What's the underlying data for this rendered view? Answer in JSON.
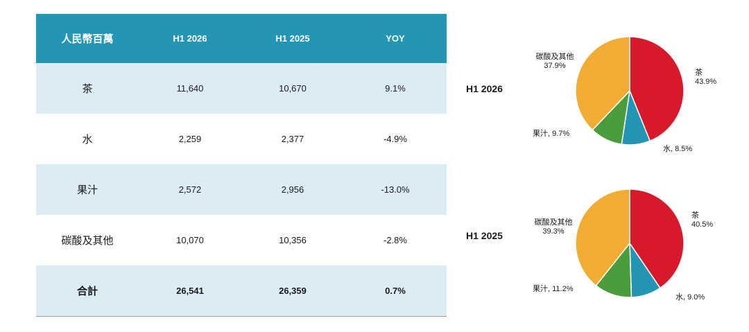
{
  "table": {
    "headers": [
      "人民幣百萬",
      "H1 2026",
      "H1 2025",
      "YOY"
    ],
    "rows": [
      {
        "label": "茶",
        "h1_2026": "11,640",
        "h1_2025": "10,670",
        "yoy": "9.1%"
      },
      {
        "label": "水",
        "h1_2026": "2,259",
        "h1_2025": "2,377",
        "yoy": "-4.9%"
      },
      {
        "label": "果汁",
        "h1_2026": "2,572",
        "h1_2025": "2,956",
        "yoy": "-13.0%"
      },
      {
        "label": "碳酸及其他",
        "h1_2026": "10,070",
        "h1_2025": "10,356",
        "yoy": "-2.8%"
      }
    ],
    "total": {
      "label": "合計",
      "h1_2026": "26,541",
      "h1_2025": "26,359",
      "yoy": "0.7%"
    }
  },
  "colors": {
    "header_bg": "#2496b5",
    "row_shade": "#dcecf4",
    "tea": "#d7192a",
    "water": "#2496b5",
    "juice": "#4a9c3d",
    "carbonated": "#f0ad32"
  },
  "chart_data": [
    {
      "type": "pie",
      "title": "H1 2026",
      "slices": [
        {
          "name": "茶",
          "value": 43.9,
          "label_line1": "茶",
          "label_line2": "43.9%"
        },
        {
          "name": "水",
          "value": 8.5,
          "label_line1": "水, 8.5%",
          "label_line2": ""
        },
        {
          "name": "果汁",
          "value": 9.7,
          "label_line1": "果汁, 9.7%",
          "label_line2": ""
        },
        {
          "name": "碳酸及其他",
          "value": 37.9,
          "label_line1": "碳酸及其他",
          "label_line2": "37.9%"
        }
      ]
    },
    {
      "type": "pie",
      "title": "H1 2025",
      "slices": [
        {
          "name": "茶",
          "value": 40.5,
          "label_line1": "茶",
          "label_line2": "40.5%"
        },
        {
          "name": "水",
          "value": 9.0,
          "label_line1": "水, 9.0%",
          "label_line2": ""
        },
        {
          "name": "果汁",
          "value": 11.2,
          "label_line1": "果汁, 11.2%",
          "label_line2": ""
        },
        {
          "name": "碳酸及其他",
          "value": 39.3,
          "label_line1": "碳酸及其他",
          "label_line2": "39.3%"
        }
      ]
    }
  ]
}
